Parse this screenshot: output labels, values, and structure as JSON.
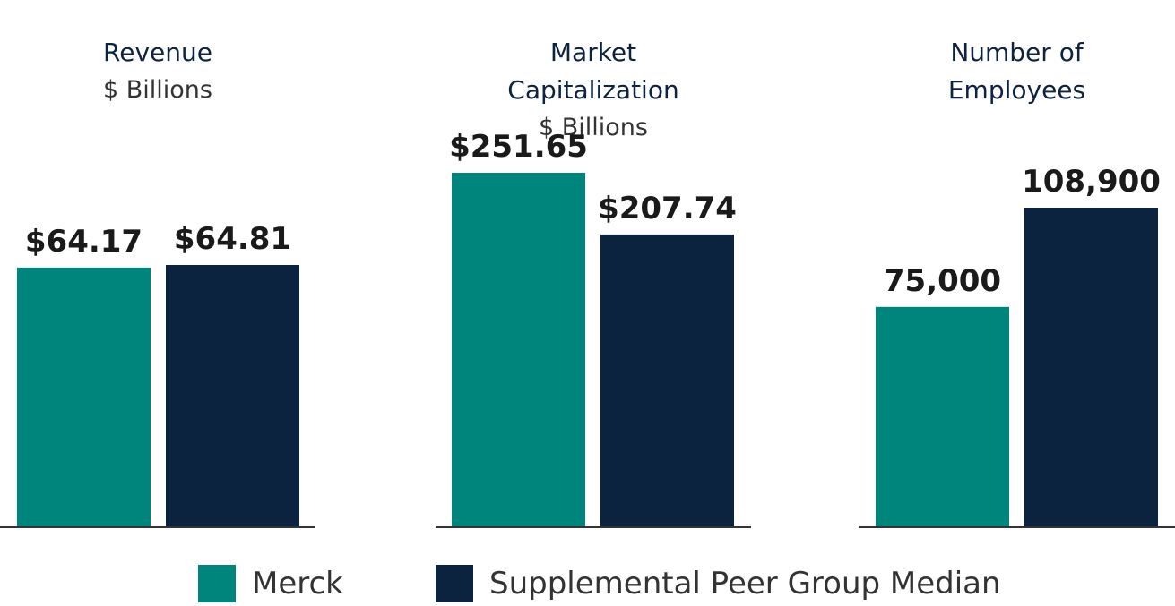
{
  "chart_data": [
    {
      "type": "bar",
      "title": "Revenue",
      "subtitle": "$ Billions",
      "series": [
        {
          "name": "Merck",
          "values": [
            64.17
          ],
          "labels": [
            "$64.17"
          ]
        },
        {
          "name": "Supplemental Peer Group Median",
          "values": [
            64.81
          ],
          "labels": [
            "$64.81"
          ]
        }
      ]
    },
    {
      "type": "bar",
      "title": "Market Capitalization",
      "subtitle": "$ Billions",
      "series": [
        {
          "name": "Merck",
          "values": [
            251.65
          ],
          "labels": [
            "$251.65"
          ]
        },
        {
          "name": "Supplemental Peer Group Median",
          "values": [
            207.74
          ],
          "labels": [
            "$207.74"
          ]
        }
      ]
    },
    {
      "type": "bar",
      "title": "Number of Employees",
      "subtitle": "",
      "series": [
        {
          "name": "Merck",
          "values": [
            75000
          ],
          "labels": [
            "75,000"
          ]
        },
        {
          "name": "Supplemental Peer Group Median",
          "values": [
            108900
          ],
          "labels": [
            "108,900"
          ]
        }
      ]
    }
  ],
  "legend": {
    "merck": "Merck",
    "peer": "Supplemental Peer Group Median"
  },
  "colors": {
    "merck": "#00857c",
    "peer": "#0c2340",
    "axis": "#333333",
    "label": "#1a1a1a"
  }
}
